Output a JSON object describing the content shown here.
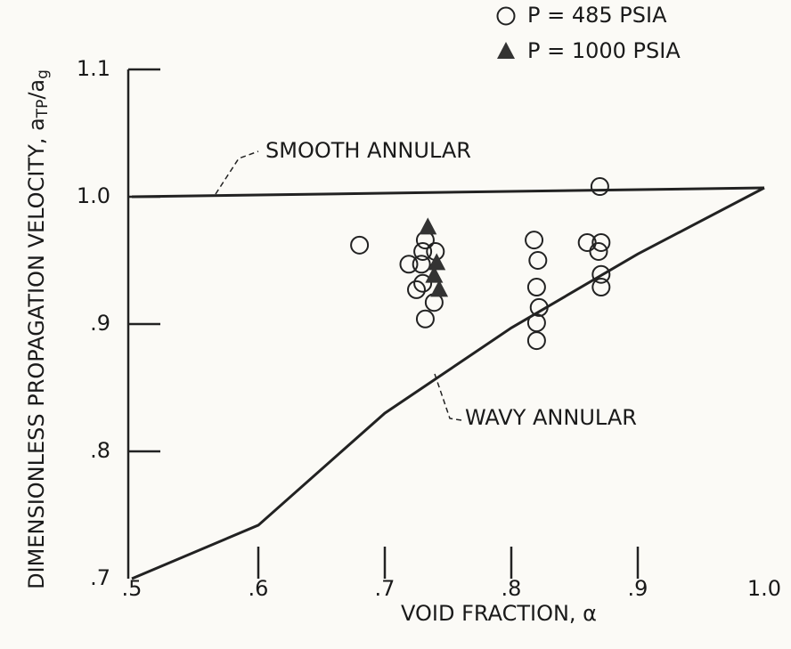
{
  "chart_data": {
    "type": "scatter",
    "x_label": "VOID FRACTION, α",
    "y_label_parts": [
      "DIMENSIONLESS PROPAGATION VELOCITY, a",
      "TP",
      "/a",
      "g"
    ],
    "xlim": [
      0.5,
      1.0
    ],
    "ylim": [
      0.7,
      1.1
    ],
    "xticks": [
      {
        "value": 0.5,
        "label": ".5"
      },
      {
        "value": 0.6,
        "label": ".6"
      },
      {
        "value": 0.7,
        "label": ".7"
      },
      {
        "value": 0.8,
        "label": ".8"
      },
      {
        "value": 0.9,
        "label": ".9"
      },
      {
        "value": 1.0,
        "label": "1.0"
      }
    ],
    "yticks": [
      {
        "value": 0.7,
        "label": ".7"
      },
      {
        "value": 0.8,
        "label": ".8"
      },
      {
        "value": 0.9,
        "label": ".9"
      },
      {
        "value": 1.0,
        "label": "1.0"
      },
      1.1
    ],
    "series": [
      {
        "name": "P = 485 PSIA",
        "marker": "open-circle",
        "color": "#222222",
        "x": [
          0.68,
          0.732,
          0.73,
          0.74,
          0.719,
          0.729,
          0.725,
          0.73,
          0.739,
          0.732,
          0.818,
          0.821,
          0.82,
          0.822,
          0.82,
          0.82,
          0.87,
          0.86,
          0.871,
          0.869,
          0.871,
          0.871
        ],
        "y": [
          0.962,
          0.966,
          0.957,
          0.957,
          0.947,
          0.947,
          0.927,
          0.932,
          0.917,
          0.904,
          0.966,
          0.95,
          0.929,
          0.913,
          0.901,
          0.887,
          1.008,
          0.964,
          0.964,
          0.957,
          0.939,
          0.929
        ]
      },
      {
        "name": "P = 1000 PSIA",
        "marker": "filled-triangle",
        "color": "#333333",
        "x": [
          0.734,
          0.741,
          0.739,
          0.743
        ],
        "y": [
          0.976,
          0.948,
          0.938,
          0.927
        ]
      }
    ],
    "lines": [
      {
        "name": "SMOOTH ANNULAR",
        "color": "#222222",
        "x": [
          0.5,
          1.0
        ],
        "y": [
          1.0,
          1.007
        ]
      },
      {
        "name": "WAVY ANNULAR",
        "color": "#222222",
        "x": [
          0.5,
          0.6,
          0.7,
          0.8,
          0.9,
          1.0
        ],
        "y": [
          0.7,
          0.742,
          0.83,
          0.897,
          0.955,
          1.007
        ]
      }
    ]
  }
}
